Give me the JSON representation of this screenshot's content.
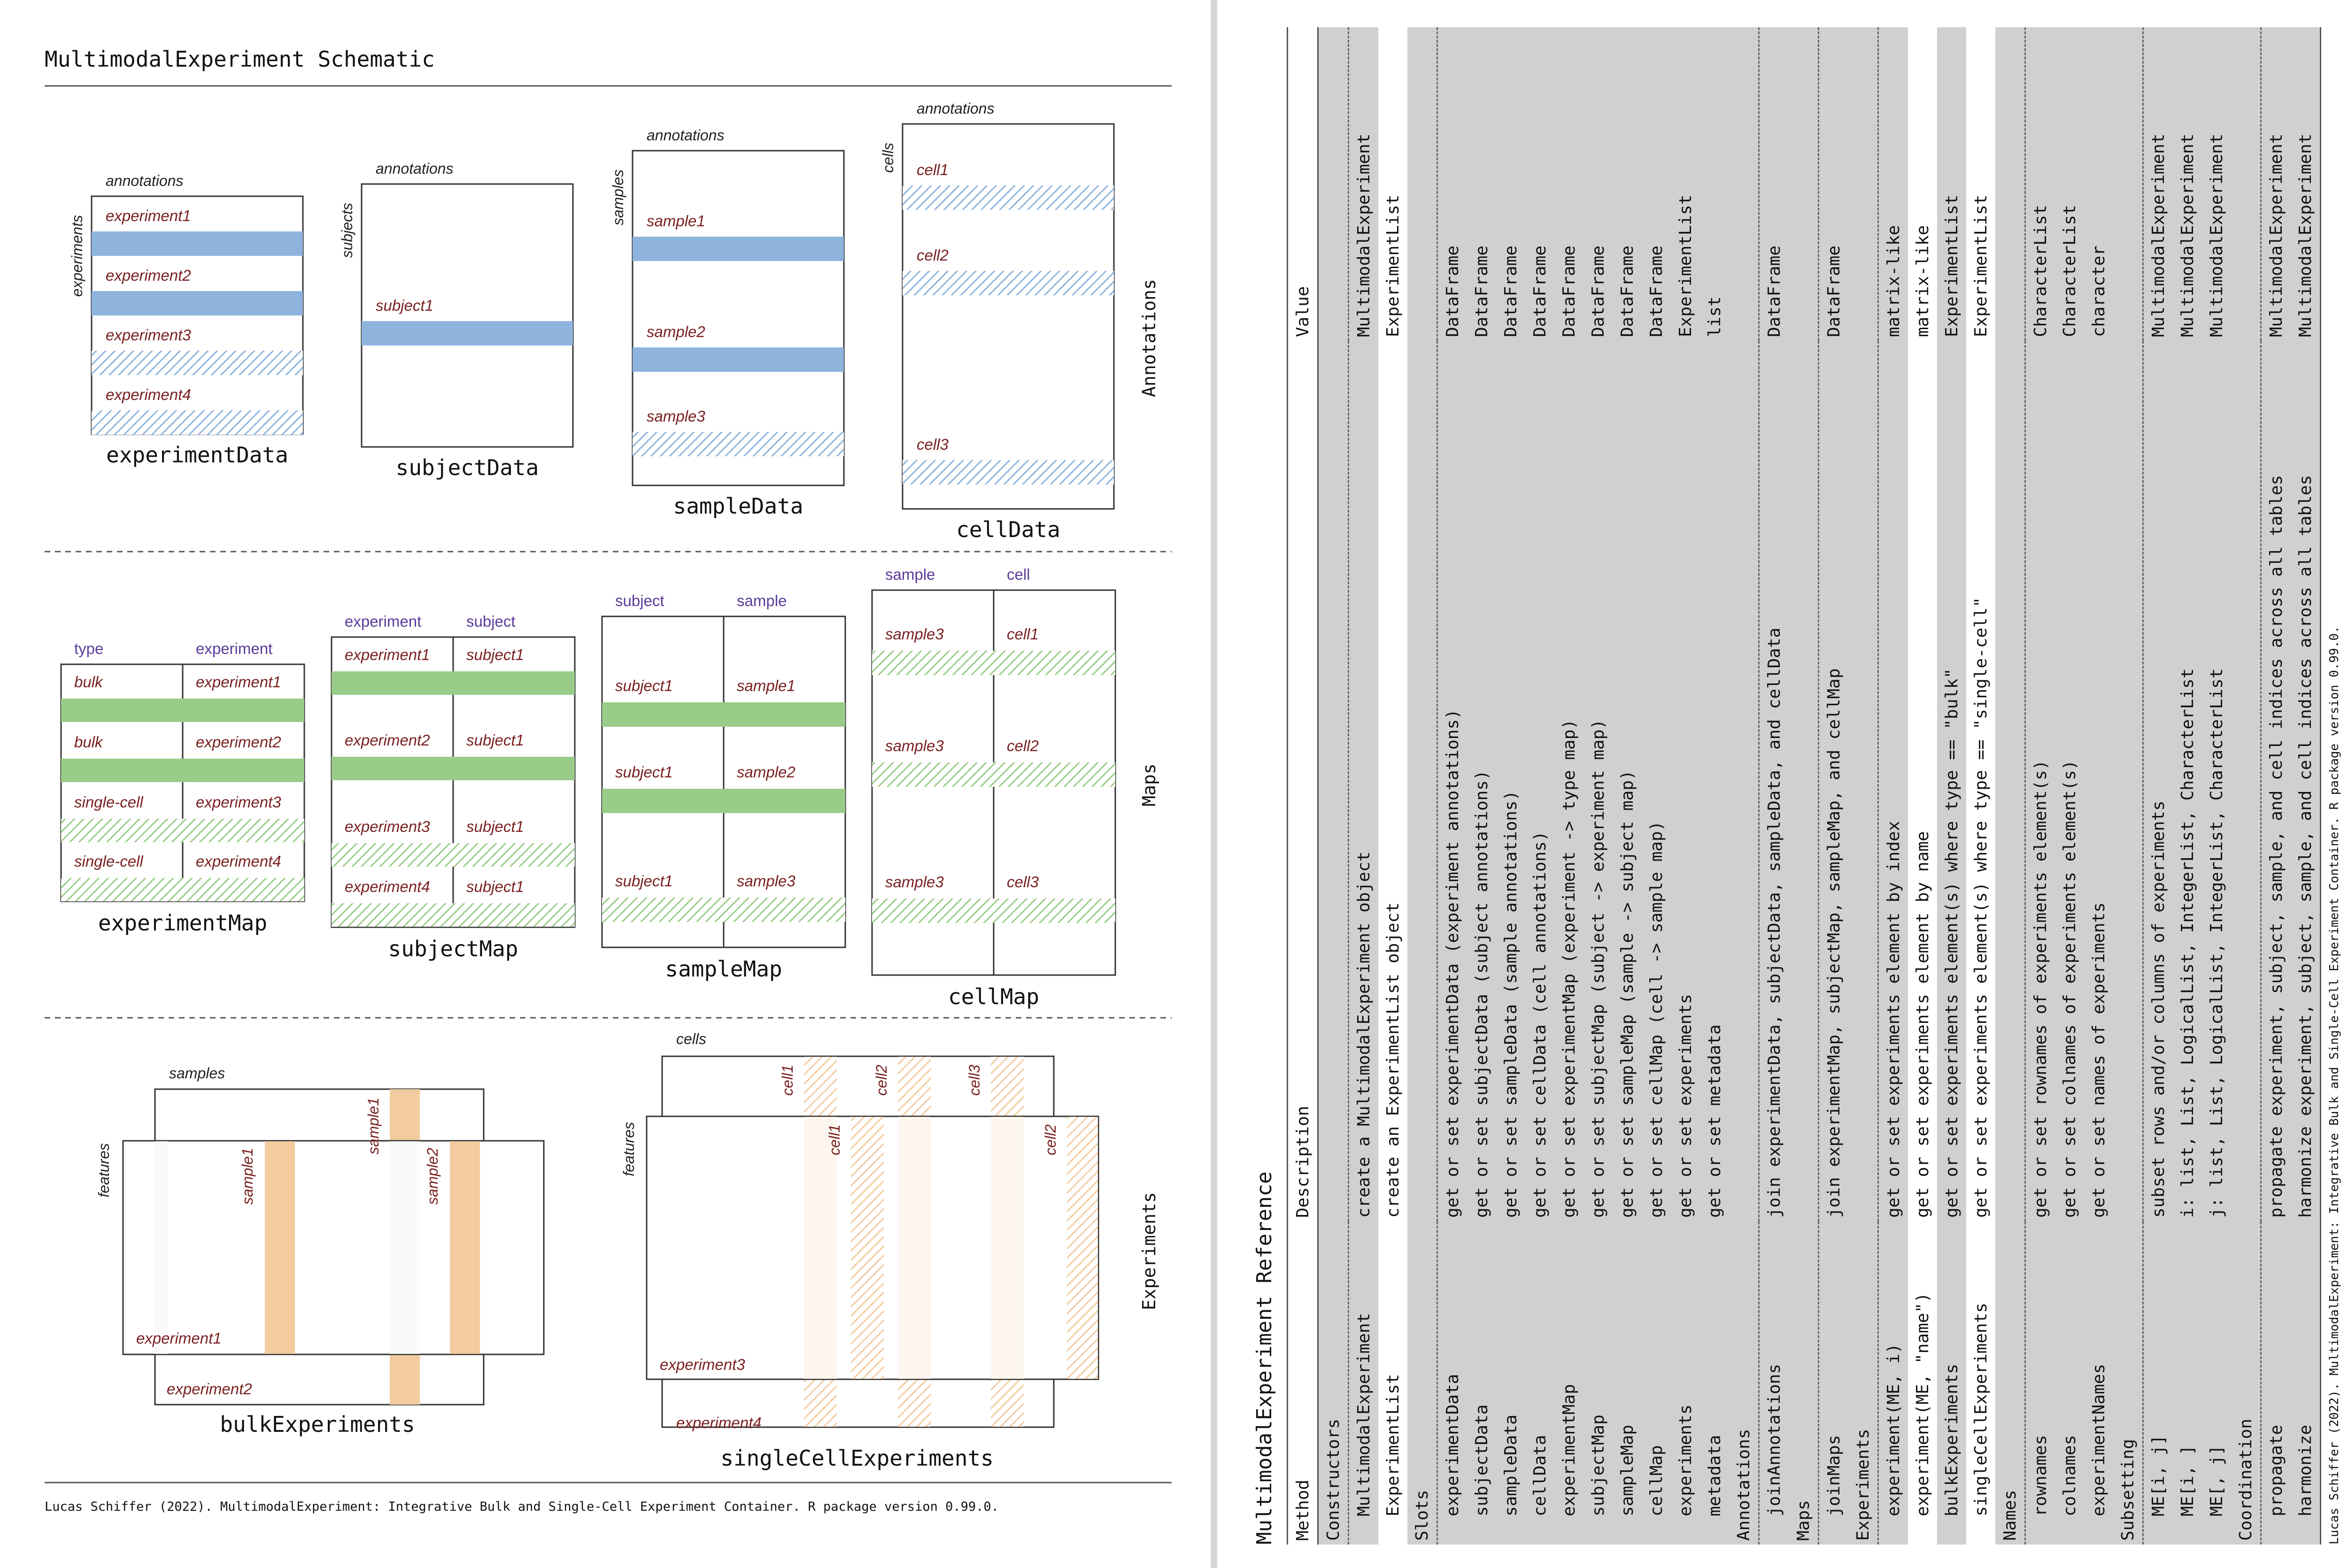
{
  "left": {
    "title": "MultimodalExperiment Schematic",
    "citation": "Lucas Schiffer (2022). MultimodalExperiment: Integrative Bulk and Single-Cell Experiment Container. R package version 0.99.0.",
    "section_labels": {
      "annotations": "Annotations",
      "maps": "Maps",
      "experiments": "Experiments"
    },
    "annotations": {
      "experimentData": {
        "name": "experimentData",
        "top_label": "annotations",
        "side_label": "experiments",
        "rows": [
          "experiment1",
          "experiment2",
          "experiment3",
          "experiment4"
        ]
      },
      "subjectData": {
        "name": "subjectData",
        "top_label": "annotations",
        "side_label": "subjects",
        "rows": [
          "subject1"
        ]
      },
      "sampleData": {
        "name": "sampleData",
        "top_label": "annotations",
        "side_label": "samples",
        "rows": [
          "sample1",
          "sample2",
          "sample3"
        ]
      },
      "cellData": {
        "name": "cellData",
        "top_label": "annotations",
        "side_label": "cells",
        "rows": [
          "cell1",
          "cell2",
          "cell3"
        ]
      }
    },
    "maps": {
      "experimentMap": {
        "name": "experimentMap",
        "headers": [
          "type",
          "experiment"
        ],
        "rows": [
          [
            "bulk",
            "experiment1"
          ],
          [
            "bulk",
            "experiment2"
          ],
          [
            "single-cell",
            "experiment3"
          ],
          [
            "single-cell",
            "experiment4"
          ]
        ]
      },
      "subjectMap": {
        "name": "subjectMap",
        "headers": [
          "experiment",
          "subject"
        ],
        "rows": [
          [
            "experiment1",
            "subject1"
          ],
          [
            "experiment2",
            "subject1"
          ],
          [
            "experiment3",
            "subject1"
          ],
          [
            "experiment4",
            "subject1"
          ]
        ]
      },
      "sampleMap": {
        "name": "sampleMap",
        "headers": [
          "subject",
          "sample"
        ],
        "rows": [
          [
            "subject1",
            "sample1"
          ],
          [
            "subject1",
            "sample2"
          ],
          [
            "subject1",
            "sample3"
          ]
        ]
      },
      "cellMap": {
        "name": "cellMap",
        "headers": [
          "sample",
          "cell"
        ],
        "rows": [
          [
            "sample3",
            "cell1"
          ],
          [
            "sample3",
            "cell2"
          ],
          [
            "sample3",
            "cell3"
          ]
        ]
      }
    },
    "experiments": {
      "bulk": {
        "name": "bulkExperiments",
        "top_label": "samples",
        "side_label": "features",
        "experiments": [
          "experiment1",
          "experiment2"
        ],
        "columns": [
          "sample1",
          "sample2"
        ]
      },
      "singleCell": {
        "name": "singleCellExperiments",
        "top_label": "cells",
        "side_label": "features",
        "experiments": [
          "experiment3",
          "experiment4"
        ],
        "back_columns": [
          "cell1",
          "cell2",
          "cell3"
        ],
        "front_columns": [
          "cell1",
          "cell2"
        ]
      }
    },
    "colors": {
      "blue": "#8eb4de",
      "green": "#99cc88",
      "orange": "#f2cc9e",
      "label_red": "#7a2020",
      "header_purple": "#5a3c9a"
    }
  },
  "right": {
    "title": "MultimodalExperiment Reference",
    "headers": [
      "Method",
      "Description",
      "Value"
    ],
    "groups": [
      {
        "name": "Constructors",
        "rows": [
          [
            "MultimodalExperiment",
            "create a MultimodalExperiment object",
            "MultimodalExperiment"
          ],
          [
            "ExperimentList",
            "create an ExperimentList object",
            "ExperimentList"
          ]
        ]
      },
      {
        "name": "Slots",
        "rows": [
          [
            "experimentData",
            "get or set experimentData (experiment annotations)",
            "DataFrame"
          ],
          [
            "subjectData",
            "get or set subjectData (subject annotations)",
            "DataFrame"
          ],
          [
            "sampleData",
            "get or set sampleData (sample annotations)",
            "DataFrame"
          ],
          [
            "cellData",
            "get or set cellData (cell annotations)",
            "DataFrame"
          ],
          [
            "experimentMap",
            "get or set experimentMap (experiment -> type map)",
            "DataFrame"
          ],
          [
            "subjectMap",
            "get or set subjectMap (subject -> experiment map)",
            "DataFrame"
          ],
          [
            "sampleMap",
            "get or set sampleMap (sample -> subject map)",
            "DataFrame"
          ],
          [
            "cellMap",
            "get or set cellMap (cell -> sample map)",
            "DataFrame"
          ],
          [
            "experiments",
            "get or set experiments",
            "ExperimentList"
          ],
          [
            "metadata",
            "get or set metadata",
            "list"
          ]
        ]
      },
      {
        "name": "Annotations",
        "rows": [
          [
            "joinAnnotations",
            "join experimentData, subjectData, sampleData, and cellData",
            "DataFrame"
          ]
        ]
      },
      {
        "name": "Maps",
        "rows": [
          [
            "joinMaps",
            "join experimentMap, subjectMap, sampleMap, and cellMap",
            "DataFrame"
          ]
        ]
      },
      {
        "name": "Experiments",
        "rows": [
          [
            "experiment(ME, i)",
            "get or set experiments element by index",
            "matrix-like"
          ],
          [
            "experiment(ME, \"name\")",
            "get or set experiments element by name",
            "matrix-like"
          ],
          [
            "bulkExperiments",
            "get or set experiments element(s) where type == \"bulk\"",
            "ExperimentList"
          ],
          [
            "singleCellExperiments",
            "get or set experiments element(s) where type == \"single-cell\"",
            "ExperimentList"
          ]
        ]
      },
      {
        "name": "Names",
        "rows": [
          [
            "rownames",
            "get or set rownames of experiments element(s)",
            "CharacterList"
          ],
          [
            "colnames",
            "get or set colnames of experiments element(s)",
            "CharacterList"
          ],
          [
            "experimentNames",
            "get or set names of experiments",
            "character"
          ]
        ]
      },
      {
        "name": "Subsetting",
        "rows": [
          [
            "ME[i, j]",
            "subset rows and/or columns of experiments",
            "MultimodalExperiment"
          ],
          [
            "ME[i, ]",
            "i: list, List, LogicalList, IntegerList, CharacterList",
            "MultimodalExperiment"
          ],
          [
            "ME[, j]",
            "j: list, List, LogicalList, IntegerList, CharacterList",
            "MultimodalExperiment"
          ]
        ]
      },
      {
        "name": "Coordination",
        "rows": [
          [
            "propagate",
            "propagate experiment, subject, sample, and cell indices across all tables",
            "MultimodalExperiment"
          ],
          [
            "harmonize",
            "harmonize experiment, subject, sample, and cell indices across all tables",
            "MultimodalExperiment"
          ]
        ]
      }
    ],
    "citation": "Lucas Schiffer (2022). MultimodalExperiment: Integrative Bulk and Single-Cell Experiment Container. R package version 0.99.0."
  }
}
